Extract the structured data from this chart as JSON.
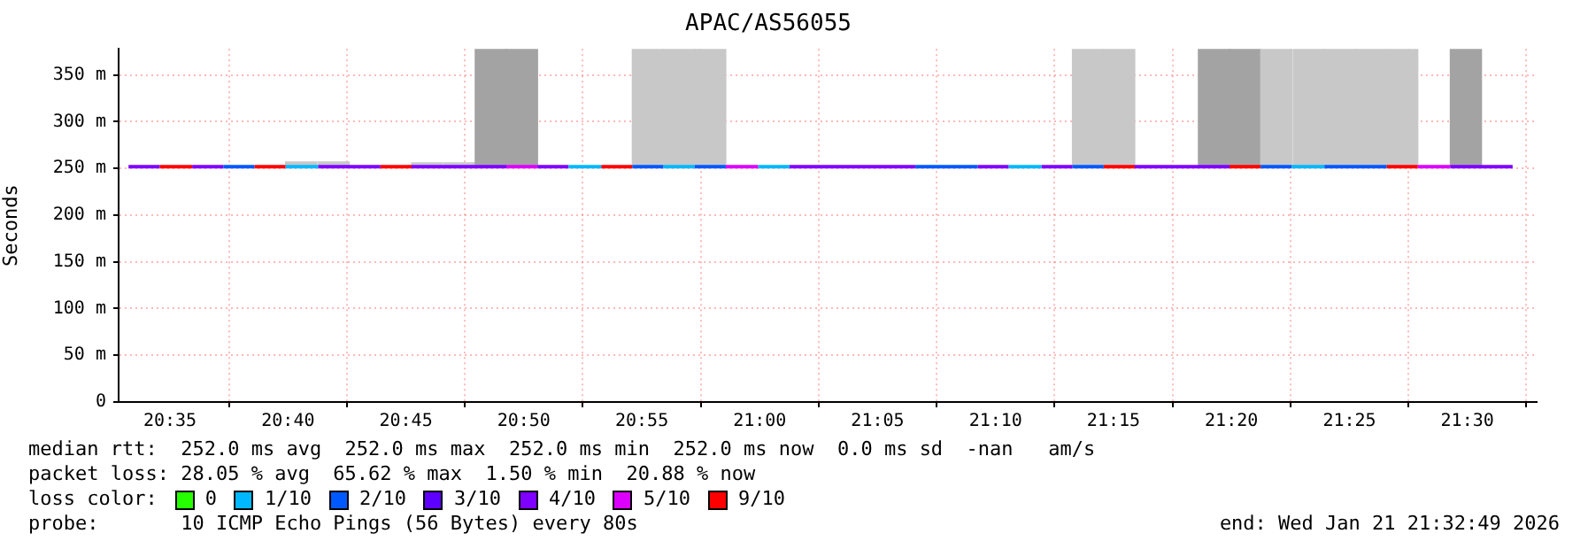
{
  "chart_data": {
    "type": "line",
    "title": "APAC/AS56055",
    "ylabel": "Seconds",
    "legend_title": "loss color:",
    "legend": "bottom",
    "grid": true,
    "marker": "none",
    "line_style": "solid",
    "xlim": [
      20.547,
      21.549
    ],
    "xticks": [
      {
        "value": 20.5833,
        "label": "20:35"
      },
      {
        "value": 20.6667,
        "label": "20:40"
      },
      {
        "value": 20.75,
        "label": "20:45"
      },
      {
        "value": 20.8333,
        "label": "20:50"
      },
      {
        "value": 20.9167,
        "label": "20:55"
      },
      {
        "value": 21,
        "label": "21:00"
      },
      {
        "value": 21.0833,
        "label": "21:05"
      },
      {
        "value": 21.1667,
        "label": "21:10"
      },
      {
        "value": 21.25,
        "label": "21:15"
      },
      {
        "value": 21.3333,
        "label": "21:20"
      },
      {
        "value": 21.4167,
        "label": "21:25"
      },
      {
        "value": 21.5,
        "label": "21:30"
      }
    ],
    "ylim": [
      0,
      378
    ],
    "yticks": [
      0,
      {
        "value": 50,
        "label": "50 m"
      },
      {
        "value": 100,
        "label": "100 m"
      },
      {
        "value": 150,
        "label": "150 m"
      },
      {
        "value": 200,
        "label": "200 m"
      },
      {
        "value": 250,
        "label": "250 m"
      },
      {
        "value": 300,
        "label": "300 m"
      },
      {
        "value": 350,
        "label": "350 m"
      }
    ],
    "series": [
      {
        "type": "bar",
        "x": [
          20.676,
          20.699,
          20.765,
          20.788,
          20.81,
          20.832,
          20.921,
          20.943,
          20.965,
          21.232,
          21.254,
          21.321,
          21.343,
          21.365,
          21.388,
          21.41,
          21.432,
          21.454,
          21.499
        ],
        "colors": [
          "#c8c8c8",
          "#c8c8c8",
          "#c8c8c8",
          "#c8c8c8",
          "#a3a3a3",
          "#a3a3a3",
          "#c8c8c8",
          "#c8c8c8",
          "#c8c8c8",
          "#c8c8c8",
          "#c8c8c8",
          "#a3a3a3",
          "#a3a3a3",
          "#c8c8c8",
          "#c8c8c8",
          "#c8c8c8",
          "#c8c8c8",
          "#c8c8c8",
          "#a3a3a3"
        ],
        "base": [
          252,
          252,
          252,
          252,
          252,
          252,
          252,
          252,
          252,
          252,
          252,
          252,
          252,
          252,
          252,
          252,
          252,
          252,
          252
        ],
        "values": [
          5,
          5,
          4,
          4,
          126,
          126,
          126,
          126,
          126,
          126,
          126,
          126,
          126,
          126,
          126,
          126,
          126,
          126,
          126
        ]
      },
      {
        "name": "0",
        "color": "#26ff00"
      },
      {
        "name": "1/10",
        "color": "#00b8ff",
        "x": [
          20.665,
          20.688,
          20.865,
          20.888,
          20.932,
          20.954,
          20.999,
          21.021,
          21.176,
          21.199,
          21.376,
          21.399
        ],
        "values": [
          252,
          252,
          252,
          252,
          252,
          252,
          252,
          252,
          252,
          252,
          252,
          252
        ]
      },
      {
        "name": "2/10",
        "color": "#0059ff",
        "x": [
          20.621,
          20.643,
          20.91,
          20.932,
          20.954,
          20.976,
          21.11,
          21.154,
          21.221,
          21.243,
          21.354,
          21.376,
          21.399,
          21.443
        ],
        "values": [
          252,
          252,
          252,
          252,
          252,
          252,
          252,
          252,
          252,
          252,
          252,
          252,
          252,
          252
        ]
      },
      {
        "name": "3/10",
        "color": "#5e00ff"
      },
      {
        "name": "4/10",
        "color": "#7e00ff",
        "x": [
          20.554,
          20.576,
          20.599,
          20.621,
          20.688,
          20.732,
          20.754,
          20.821,
          20.843,
          20.865,
          21.021,
          21.11,
          21.154,
          21.176,
          21.199,
          21.221,
          21.265,
          21.332,
          21.488,
          21.532
        ],
        "values": [
          252,
          252,
          252,
          252,
          252,
          252,
          252,
          252,
          252,
          252,
          252,
          252,
          252,
          252,
          252,
          252,
          252,
          252,
          252,
          252
        ]
      },
      {
        "name": "5/10",
        "color": "#dd00ff",
        "x": [
          20.821,
          20.843,
          20.976,
          20.999,
          21.465,
          21.488
        ],
        "values": [
          252,
          252,
          252,
          252,
          252,
          252
        ]
      },
      {
        "name": "9/10",
        "color": "#ff0000",
        "x": [
          20.576,
          20.599,
          20.643,
          20.665,
          20.732,
          20.754,
          20.888,
          20.91,
          21.243,
          21.265,
          21.332,
          21.354,
          21.443,
          21.465
        ],
        "values": [
          252,
          252,
          252,
          252,
          252,
          252,
          252,
          252,
          252,
          252,
          252,
          252,
          252,
          252
        ]
      }
    ],
    "annotations": [
      "median rtt:  252.0 ms avg  252.0 ms max  252.0 ms min  252.0 ms now  0.0 ms sd  -nan   am/s",
      "packet loss: 28.05 % avg  65.62 % max  1.50 % min  20.88 % now",
      "probe:       10 ICMP Echo Pings (56 Bytes) every 80s",
      "end: Wed Jan 21 21:32:49 2026"
    ]
  }
}
